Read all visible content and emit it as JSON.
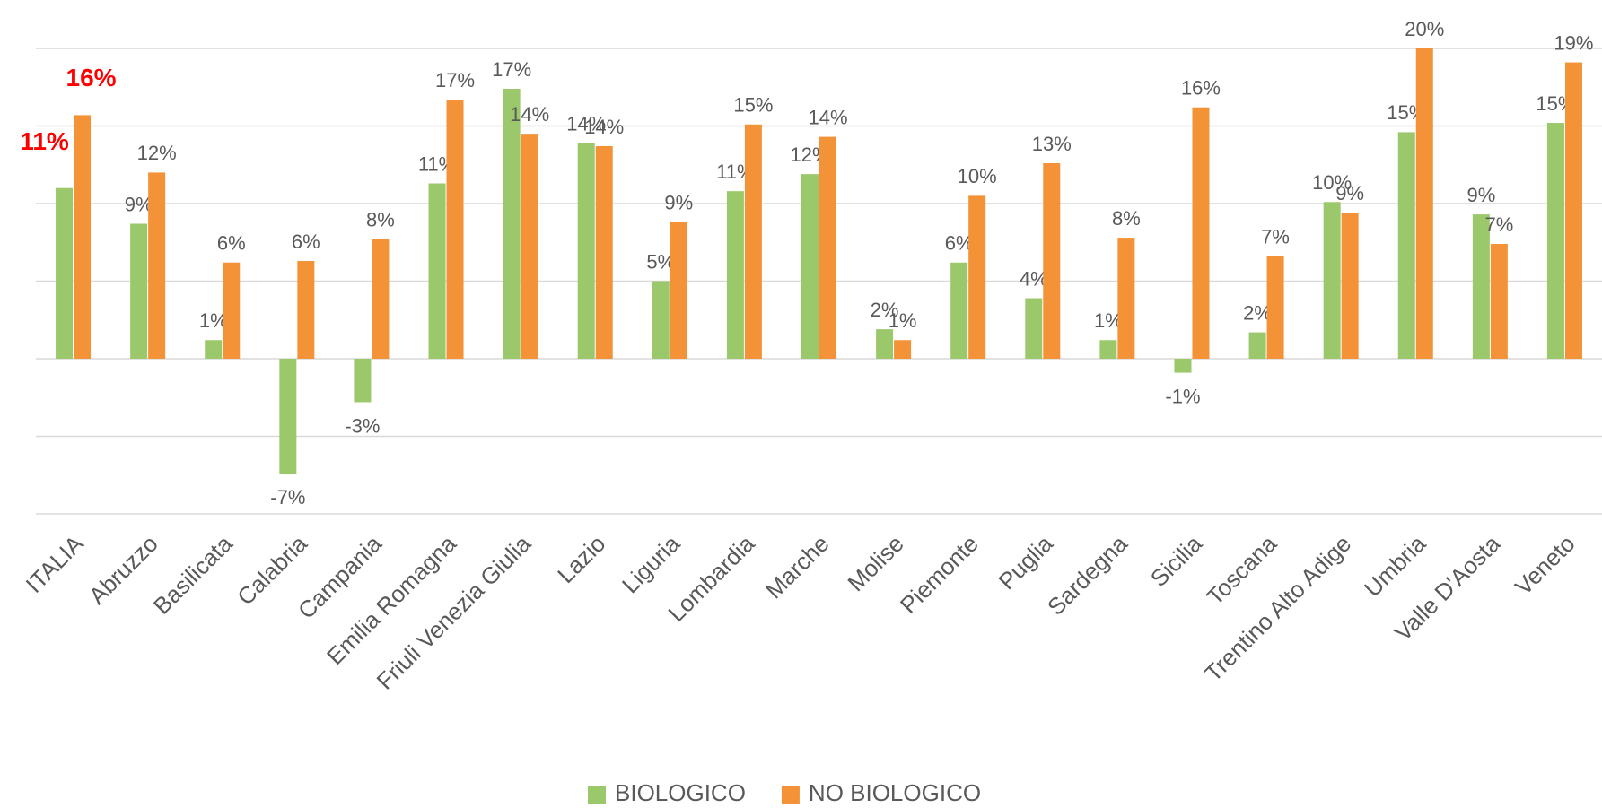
{
  "chart_data": {
    "type": "bar",
    "categories": [
      "ITALIA",
      "Abruzzo",
      "Basilicata",
      "Calabria",
      "Campania",
      "Emilia Romagna",
      "Friuli Venezia Giulia",
      "Lazio",
      "Liguria",
      "Lombardia",
      "Marche",
      "Molise",
      "Piemonte",
      "Puglia",
      "Sardegna",
      "Sicilia",
      "Toscana",
      "Trentino Alto Adige",
      "Umbria",
      "Valle D'Aosta",
      "Veneto"
    ],
    "series": [
      {
        "name": "BIOLOGICO",
        "color": "#9bc86a",
        "values": [
          11.0,
          8.7,
          1.2,
          -7.4,
          -2.8,
          11.3,
          17.4,
          13.9,
          5.0,
          10.8,
          11.9,
          1.9,
          6.2,
          3.9,
          1.2,
          -0.9,
          1.7,
          10.1,
          14.6,
          9.3,
          15.2
        ],
        "value_labels": [
          "11%",
          "9%",
          "1%",
          "-7%",
          "-3%",
          "11%",
          "17%",
          "14%",
          "5%",
          "11%",
          "12%",
          "2%",
          "6%",
          "4%",
          "1%",
          "-1%",
          "2%",
          "10%",
          "15%",
          "9%",
          "15%"
        ]
      },
      {
        "name": "NO BIOLOGICO",
        "color": "#f39237",
        "values": [
          15.7,
          12.0,
          6.2,
          6.3,
          7.7,
          16.7,
          14.5,
          13.7,
          8.8,
          15.1,
          14.3,
          1.2,
          10.5,
          12.6,
          7.8,
          16.2,
          6.6,
          9.4,
          20.0,
          7.4,
          19.1
        ],
        "value_labels": [
          "16%",
          "12%",
          "6%",
          "6%",
          "8%",
          "17%",
          "14%",
          "14%",
          "9%",
          "15%",
          "14%",
          "1%",
          "10%",
          "13%",
          "8%",
          "16%",
          "7%",
          "9%",
          "20%",
          "7%",
          "19%"
        ]
      }
    ],
    "ylim": [
      -10,
      20
    ],
    "yticks": [
      -10,
      -5,
      0,
      5,
      10,
      15,
      20
    ],
    "grid": true,
    "legend": "bottom"
  }
}
